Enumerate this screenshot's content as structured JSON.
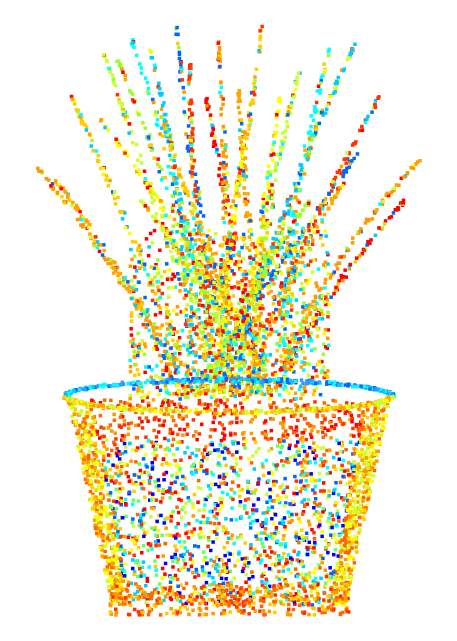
{
  "scene": {
    "subject": "point-cloud-potted-plant",
    "background_color": "#ffffff",
    "colormap": [
      "#0000ff",
      "#0066ff",
      "#00ccff",
      "#00ffff",
      "#66ff66",
      "#ccff33",
      "#ffff00",
      "#ffcc00",
      "#ff9900",
      "#ff6600",
      "#ff3300",
      "#ff0000"
    ],
    "leaf_colormap": [
      "#ff9900",
      "#ffa500",
      "#ffcc00",
      "#ffff00",
      "#ccff33",
      "#99ff33",
      "#00ffff",
      "#00ccff",
      "#0066ff",
      "#ff3300",
      "#ff0000"
    ]
  }
}
